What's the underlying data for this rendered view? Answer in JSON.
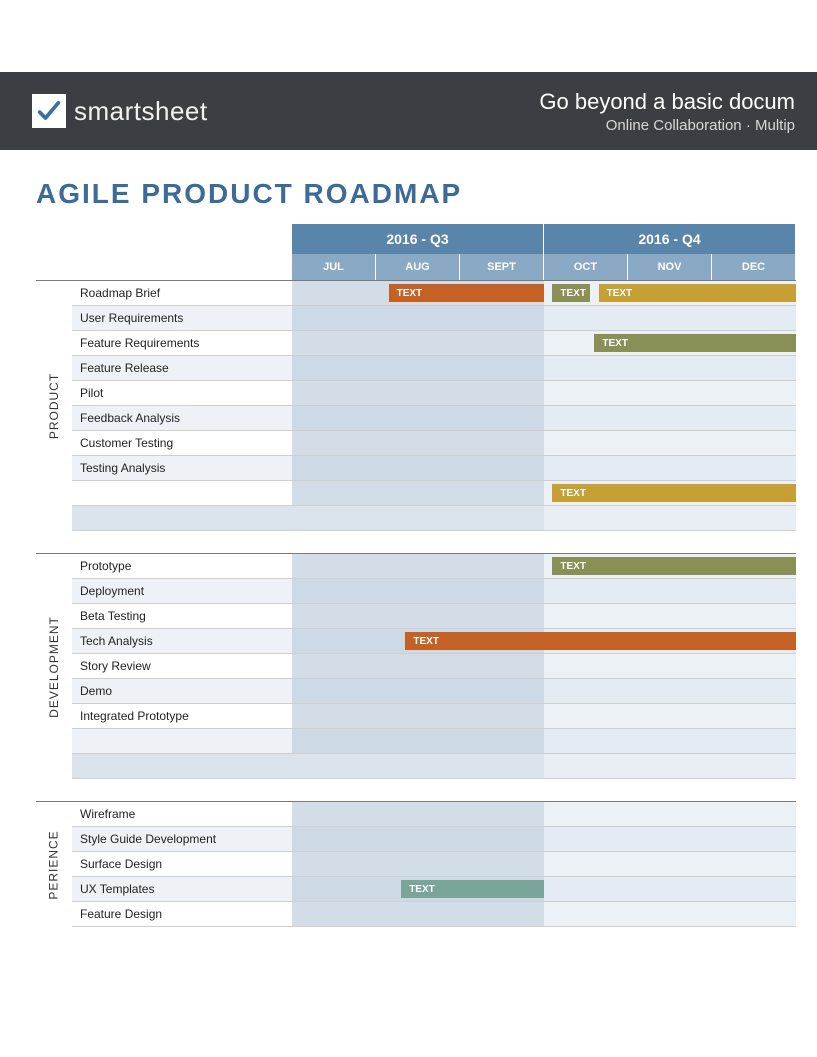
{
  "banner": {
    "brand": "smartsheet",
    "headline": "Go beyond a basic docum",
    "subline": "Online Collaboration  ·  Multip",
    "bg": "#3b3e42",
    "check_color": "#3d6fa3"
  },
  "title": "AGILE PRODUCT ROADMAP",
  "title_color": "#3c6a99",
  "colors": {
    "q_header": "#5a85aa",
    "m_header": "#8aa9c4",
    "lane_q3": "#d3dde8",
    "lane_q4": "#ecf1f6",
    "lane_q3_alt": "#cdd9e5",
    "lane_q4_alt": "#e4ebf2",
    "orange": "#c46124",
    "olive": "#8a8f55",
    "gold": "#c6a035",
    "teal": "#7aa69a"
  },
  "timeline": {
    "quarters": [
      "2016 - Q3",
      "2016 - Q4"
    ],
    "months": [
      "JUL",
      "AUG",
      "SEPT",
      "OCT",
      "NOV",
      "DEC"
    ],
    "month_count": 6
  },
  "groups": [
    {
      "name": "PRODUCT",
      "rows": [
        {
          "label": "Roadmap Brief",
          "bars": [
            {
              "start": 1.15,
              "end": 3.0,
              "color": "#c46124",
              "text": "TEXT"
            },
            {
              "start": 3.1,
              "end": 3.55,
              "color": "#8a8f55",
              "text": "TEXT"
            },
            {
              "start": 3.65,
              "end": 6.0,
              "color": "#c6a035",
              "text": "TEXT"
            }
          ]
        },
        {
          "label": "User Requirements",
          "bars": []
        },
        {
          "label": "Feature Requirements",
          "bars": [
            {
              "start": 3.6,
              "end": 6.0,
              "color": "#8a8f55",
              "text": "TEXT"
            }
          ]
        },
        {
          "label": "Feature Release",
          "bars": []
        },
        {
          "label": "Pilot",
          "bars": []
        },
        {
          "label": "Feedback Analysis",
          "bars": []
        },
        {
          "label": "Customer Testing",
          "bars": []
        },
        {
          "label": "Testing Analysis",
          "bars": []
        },
        {
          "label": "",
          "empty": false,
          "bars": [
            {
              "start": 3.1,
              "end": 6.0,
              "color": "#c6a035",
              "text": "TEXT"
            }
          ]
        },
        {
          "label": "",
          "empty": true,
          "bars": []
        }
      ]
    },
    {
      "name": "DEVELOPMENT",
      "rows": [
        {
          "label": "Prototype",
          "bars": [
            {
              "start": 3.1,
              "end": 6.0,
              "color": "#8a8f55",
              "text": "TEXT"
            }
          ]
        },
        {
          "label": "Deployment",
          "bars": []
        },
        {
          "label": "Beta Testing",
          "bars": []
        },
        {
          "label": "Tech Analysis",
          "bars": [
            {
              "start": 1.35,
              "end": 6.0,
              "color": "#c46124",
              "text": "TEXT"
            }
          ]
        },
        {
          "label": "Story Review",
          "bars": []
        },
        {
          "label": "Demo",
          "bars": []
        },
        {
          "label": "Integrated Prototype",
          "bars": []
        },
        {
          "label": "",
          "empty": false,
          "bars": []
        },
        {
          "label": "",
          "empty": true,
          "bars": []
        }
      ]
    },
    {
      "name": "PERIENCE",
      "rows": [
        {
          "label": "Wireframe",
          "bars": []
        },
        {
          "label": "Style Guide Development",
          "bars": []
        },
        {
          "label": "Surface Design",
          "bars": []
        },
        {
          "label": "UX Templates",
          "bars": [
            {
              "start": 1.3,
              "end": 3.0,
              "color": "#7aa69a",
              "text": "TEXT"
            }
          ]
        },
        {
          "label": "Feature Design",
          "bars": []
        }
      ]
    }
  ]
}
